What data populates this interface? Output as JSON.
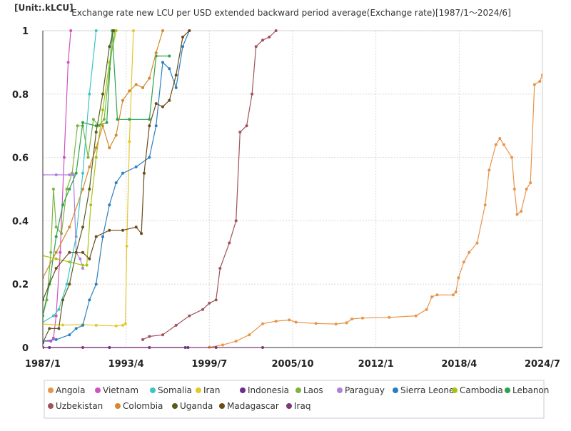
{
  "chart_data": {
    "type": "line",
    "title": "Exchange rate new LCU per USD extended backward period average(Exchange rate)[1987/1～2024/6]",
    "unit_label": "[Unit:.kLCU]",
    "xlabel": "",
    "ylabel": "",
    "xlim": [
      "1987/1",
      "2024/7"
    ],
    "ylim": [
      0,
      1
    ],
    "x_ticks": [
      "1987/1",
      "1993/4",
      "1999/7",
      "2005/10",
      "2012/1",
      "2018/4",
      "2024/7"
    ],
    "y_ticks": [
      "0",
      "0.2",
      "0.4",
      "0.6",
      "0.8",
      "1"
    ],
    "grid": true,
    "legend_position": "bottom",
    "series": [
      {
        "name": "Angola",
        "color": "#e8944a",
        "points": [
          [
            1999.5,
            0.001
          ],
          [
            2000.5,
            0.008
          ],
          [
            2001.5,
            0.02
          ],
          [
            2002.5,
            0.04
          ],
          [
            2003.5,
            0.075
          ],
          [
            2004.5,
            0.083
          ],
          [
            2005.5,
            0.087
          ],
          [
            2006.0,
            0.08
          ],
          [
            2007.5,
            0.076
          ],
          [
            2009.0,
            0.074
          ],
          [
            2009.8,
            0.078
          ],
          [
            2010.2,
            0.09
          ],
          [
            2011.0,
            0.093
          ],
          [
            2013.0,
            0.095
          ],
          [
            2015.0,
            0.1
          ],
          [
            2015.8,
            0.12
          ],
          [
            2016.2,
            0.16
          ],
          [
            2016.6,
            0.166
          ],
          [
            2017.8,
            0.166
          ],
          [
            2018.0,
            0.175
          ],
          [
            2018.2,
            0.22
          ],
          [
            2018.6,
            0.27
          ],
          [
            2019.0,
            0.3
          ],
          [
            2019.6,
            0.33
          ],
          [
            2020.2,
            0.45
          ],
          [
            2020.5,
            0.56
          ],
          [
            2021.0,
            0.64
          ],
          [
            2021.3,
            0.66
          ],
          [
            2021.6,
            0.64
          ],
          [
            2022.2,
            0.6
          ],
          [
            2022.4,
            0.5
          ],
          [
            2022.6,
            0.42
          ],
          [
            2022.9,
            0.43
          ],
          [
            2023.3,
            0.5
          ],
          [
            2023.6,
            0.52
          ],
          [
            2023.9,
            0.83
          ],
          [
            2024.3,
            0.84
          ],
          [
            2024.5,
            0.86
          ]
        ]
      },
      {
        "name": "Vietnam",
        "color": "#d052c0",
        "points": [
          [
            1987.0,
            0.02
          ],
          [
            1987.6,
            0.02
          ],
          [
            1987.8,
            0.03
          ],
          [
            1988.0,
            0.1
          ],
          [
            1988.3,
            0.3
          ],
          [
            1988.6,
            0.6
          ],
          [
            1988.9,
            0.9
          ],
          [
            1989.1,
            1.0
          ]
        ]
      },
      {
        "name": "Somalia",
        "color": "#3dc4c4",
        "points": [
          [
            1987.0,
            0.08
          ],
          [
            1987.8,
            0.1
          ],
          [
            1988.2,
            0.12
          ],
          [
            1988.8,
            0.2
          ],
          [
            1989.5,
            0.35
          ],
          [
            1990.0,
            0.55
          ],
          [
            1990.5,
            0.8
          ],
          [
            1991.0,
            1.0
          ]
        ]
      },
      {
        "name": "Iran",
        "color": "#e6c72e",
        "points": [
          [
            1987.0,
            0.074
          ],
          [
            1988.5,
            0.071
          ],
          [
            1990.0,
            0.072
          ],
          [
            1991.0,
            0.07
          ],
          [
            1992.5,
            0.068
          ],
          [
            1993.0,
            0.07
          ],
          [
            1993.2,
            0.075
          ],
          [
            1993.3,
            0.32
          ],
          [
            1993.5,
            0.65
          ],
          [
            1993.8,
            1.0
          ]
        ]
      },
      {
        "name": "Indonesia",
        "color": "#6a2f8a",
        "points": [
          [
            1987.0,
            0.0
          ],
          [
            1987.5,
            0.0
          ],
          [
            1992.0,
            0.0
          ],
          [
            1997.7,
            0.0
          ],
          [
            1997.9,
            0.0
          ]
        ]
      },
      {
        "name": "Laos",
        "color": "#7cb342",
        "points": [
          [
            1987.0,
            0.1
          ],
          [
            1987.3,
            0.15
          ],
          [
            1987.6,
            0.3
          ],
          [
            1987.8,
            0.5
          ],
          [
            1988.0,
            0.38
          ],
          [
            1988.4,
            0.36
          ],
          [
            1988.8,
            0.5
          ],
          [
            1989.2,
            0.55
          ],
          [
            1989.6,
            0.7
          ],
          [
            1990.0,
            0.7
          ],
          [
            1990.4,
            0.6
          ],
          [
            1990.8,
            0.72
          ],
          [
            1991.2,
            0.7
          ],
          [
            1991.6,
            0.72
          ],
          [
            1992.0,
            0.88
          ],
          [
            1992.4,
            1.0
          ]
        ]
      },
      {
        "name": "Paraguay",
        "color": "#b07fe0",
        "points": [
          [
            1987.0,
            0.545
          ],
          [
            1988.0,
            0.545
          ],
          [
            1989.0,
            0.545
          ],
          [
            1989.3,
            0.545
          ],
          [
            1989.5,
            0.3
          ],
          [
            1989.8,
            0.28
          ],
          [
            1990.0,
            0.25
          ]
        ]
      },
      {
        "name": "Sierra Leone",
        "color": "#2a7fc0",
        "points": [
          [
            1987.0,
            0.02
          ],
          [
            1988.0,
            0.025
          ],
          [
            1989.0,
            0.04
          ],
          [
            1989.5,
            0.06
          ],
          [
            1990.0,
            0.07
          ],
          [
            1990.5,
            0.15
          ],
          [
            1991.0,
            0.2
          ],
          [
            1991.5,
            0.35
          ],
          [
            1992.0,
            0.45
          ],
          [
            1992.5,
            0.52
          ],
          [
            1993.0,
            0.55
          ],
          [
            1994.0,
            0.57
          ],
          [
            1995.0,
            0.6
          ],
          [
            1995.5,
            0.7
          ],
          [
            1996.0,
            0.9
          ],
          [
            1996.5,
            0.88
          ],
          [
            1997.0,
            0.82
          ],
          [
            1997.5,
            0.95
          ],
          [
            1998.0,
            1.0
          ]
        ]
      },
      {
        "name": "Cambodia",
        "color": "#a6c317",
        "points": [
          [
            1987.0,
            0.29
          ],
          [
            1988.0,
            0.28
          ],
          [
            1989.0,
            0.27
          ],
          [
            1990.0,
            0.26
          ],
          [
            1990.3,
            0.26
          ],
          [
            1990.6,
            0.45
          ],
          [
            1991.0,
            0.6
          ],
          [
            1991.5,
            0.75
          ],
          [
            1992.0,
            0.9
          ],
          [
            1992.5,
            1.0
          ]
        ]
      },
      {
        "name": "Lebanon",
        "color": "#2fa24a",
        "points": [
          [
            1987.0,
            0.1
          ],
          [
            1987.5,
            0.2
          ],
          [
            1988.0,
            0.35
          ],
          [
            1988.5,
            0.45
          ],
          [
            1989.0,
            0.5
          ],
          [
            1989.5,
            0.55
          ],
          [
            1990.0,
            0.71
          ],
          [
            1991.0,
            0.7
          ],
          [
            1991.8,
            0.71
          ],
          [
            1992.2,
            1.0
          ],
          [
            1992.6,
            0.72
          ],
          [
            1993.5,
            0.72
          ],
          [
            1995.0,
            0.72
          ],
          [
            1995.5,
            0.92
          ],
          [
            1996.5,
            0.92
          ]
        ]
      },
      {
        "name": "Uzbekistan",
        "color": "#a0525a",
        "points": [
          [
            1994.5,
            0.025
          ],
          [
            1995.0,
            0.035
          ],
          [
            1996.0,
            0.04
          ],
          [
            1997.0,
            0.07
          ],
          [
            1998.0,
            0.1
          ],
          [
            1999.0,
            0.12
          ],
          [
            1999.5,
            0.14
          ],
          [
            2000.0,
            0.15
          ],
          [
            2000.3,
            0.25
          ],
          [
            2001.0,
            0.33
          ],
          [
            2001.5,
            0.4
          ],
          [
            2001.8,
            0.68
          ],
          [
            2002.3,
            0.7
          ],
          [
            2002.7,
            0.8
          ],
          [
            2003.0,
            0.95
          ],
          [
            2003.5,
            0.97
          ],
          [
            2004.0,
            0.98
          ],
          [
            2004.5,
            1.0
          ]
        ]
      },
      {
        "name": "Colombia",
        "color": "#d08a2a",
        "points": [
          [
            1987.0,
            0.22
          ],
          [
            1988.0,
            0.3
          ],
          [
            1989.0,
            0.38
          ],
          [
            1990.0,
            0.5
          ],
          [
            1990.5,
            0.57
          ],
          [
            1991.0,
            0.63
          ],
          [
            1991.5,
            0.7
          ],
          [
            1992.0,
            0.63
          ],
          [
            1992.5,
            0.67
          ],
          [
            1993.0,
            0.78
          ],
          [
            1993.5,
            0.81
          ],
          [
            1994.0,
            0.83
          ],
          [
            1994.5,
            0.82
          ],
          [
            1995.0,
            0.85
          ],
          [
            1995.5,
            0.93
          ],
          [
            1996.0,
            1.0
          ]
        ]
      },
      {
        "name": "Uganda",
        "color": "#5a5a1e",
        "points": [
          [
            1987.0,
            0.015
          ],
          [
            1987.5,
            0.06
          ],
          [
            1988.2,
            0.06
          ],
          [
            1988.5,
            0.15
          ],
          [
            1989.0,
            0.2
          ],
          [
            1989.5,
            0.3
          ],
          [
            1990.0,
            0.38
          ],
          [
            1990.5,
            0.5
          ],
          [
            1991.0,
            0.68
          ],
          [
            1991.5,
            0.8
          ],
          [
            1992.0,
            0.95
          ],
          [
            1992.3,
            1.0
          ]
        ]
      },
      {
        "name": "Madagascar",
        "color": "#6b4a1a",
        "points": [
          [
            1987.0,
            0.15
          ],
          [
            1988.0,
            0.25
          ],
          [
            1989.0,
            0.3
          ],
          [
            1990.0,
            0.3
          ],
          [
            1990.5,
            0.28
          ],
          [
            1991.0,
            0.35
          ],
          [
            1992.0,
            0.37
          ],
          [
            1993.0,
            0.37
          ],
          [
            1994.0,
            0.38
          ],
          [
            1994.4,
            0.36
          ],
          [
            1994.6,
            0.55
          ],
          [
            1995.0,
            0.7
          ],
          [
            1995.5,
            0.77
          ],
          [
            1996.0,
            0.76
          ],
          [
            1996.5,
            0.78
          ],
          [
            1997.0,
            0.86
          ],
          [
            1997.5,
            0.98
          ],
          [
            1998.0,
            1.0
          ]
        ]
      },
      {
        "name": "Iraq",
        "color": "#7a3a7a",
        "points": [
          [
            1987.0,
            0.0
          ],
          [
            1990.0,
            0.0
          ],
          [
            1995.0,
            0.0
          ],
          [
            2000.0,
            0.0
          ],
          [
            2003.5,
            0.0
          ]
        ]
      }
    ]
  }
}
